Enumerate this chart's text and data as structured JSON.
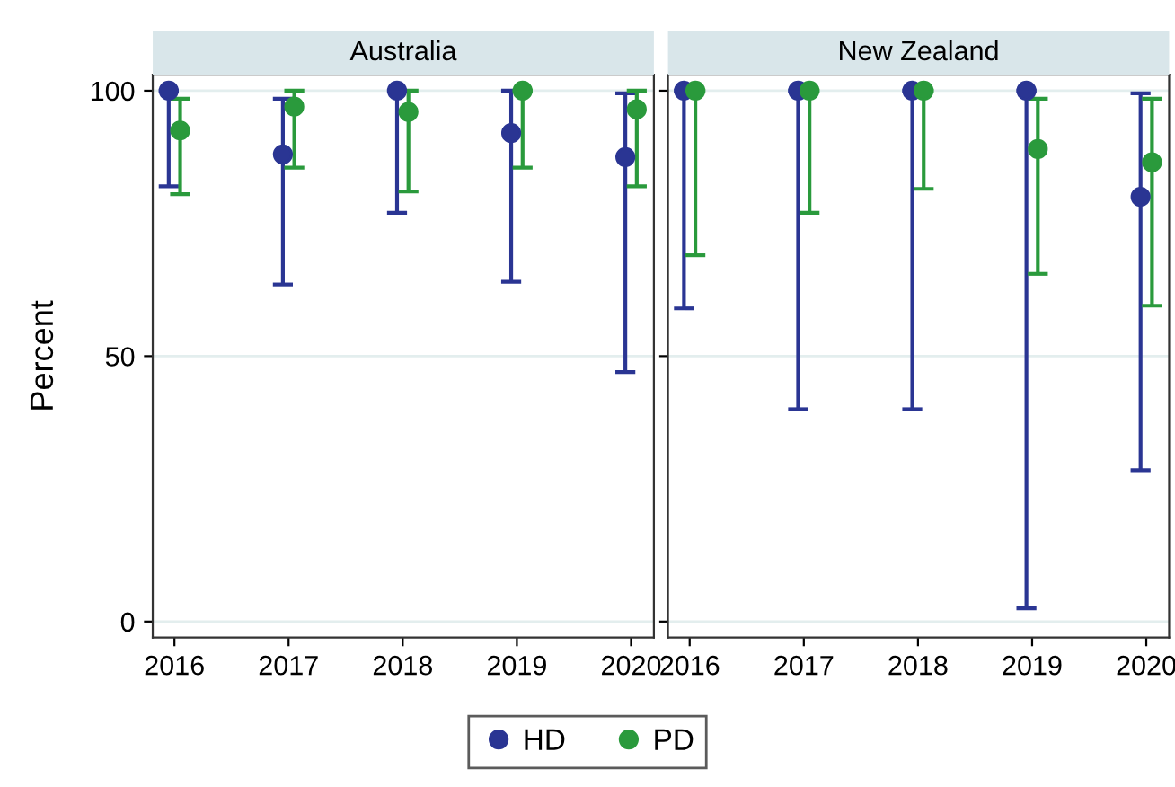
{
  "chart_data": [
    {
      "type": "scatter",
      "title": "Australia",
      "ylabel": "Percent",
      "xlim": [
        2015.81,
        2020.2
      ],
      "xticks": [
        2016,
        2017,
        2018,
        2019,
        2020
      ],
      "ylim": [
        -3,
        103
      ],
      "yticks": [
        0,
        50,
        100
      ],
      "grid": "y",
      "marker": "circle",
      "legend": "bottom",
      "series": [
        {
          "name": "HD",
          "color": "#2a3593",
          "x": [
            2015.95,
            2016.95,
            2017.95,
            2018.95,
            2019.95
          ],
          "values": [
            100,
            88,
            100,
            92,
            87.5
          ],
          "errors": [
            [
              82,
              100
            ],
            [
              63.5,
              98.5
            ],
            [
              77,
              100
            ],
            [
              64,
              100
            ],
            [
              47,
              99.5
            ]
          ]
        },
        {
          "name": "PD",
          "color": "#2a9a3c",
          "x": [
            2016.05,
            2017.05,
            2018.05,
            2019.05,
            2020.05
          ],
          "values": [
            92.5,
            97,
            96,
            100,
            96.5
          ],
          "errors": [
            [
              80.5,
              98.5
            ],
            [
              85.5,
              100
            ],
            [
              81,
              100
            ],
            [
              85.5,
              100
            ],
            [
              82,
              100
            ]
          ]
        }
      ]
    },
    {
      "type": "scatter",
      "title": "New Zealand",
      "xlim": [
        2015.81,
        2020.2
      ],
      "xticks": [
        2016,
        2017,
        2018,
        2019,
        2020
      ],
      "ylim": [
        -3,
        103
      ],
      "yticks": [
        0,
        50,
        100
      ],
      "grid": "y",
      "marker": "circle",
      "tick_labels": "x",
      "series": [
        {
          "name": "HD",
          "color": "#2a3593",
          "x": [
            2015.95,
            2016.95,
            2017.95,
            2018.95,
            2019.95
          ],
          "values": [
            100,
            100,
            100,
            100,
            80
          ],
          "errors": [
            [
              59,
              100
            ],
            [
              40,
              100
            ],
            [
              40,
              100
            ],
            [
              2.5,
              100
            ],
            [
              28.5,
              99.5
            ]
          ]
        },
        {
          "name": "PD",
          "color": "#2a9a3c",
          "x": [
            2016.05,
            2017.05,
            2018.05,
            2019.05,
            2020.05
          ],
          "values": [
            100,
            100,
            100,
            89,
            86.5
          ],
          "errors": [
            [
              69,
              100
            ],
            [
              77,
              100
            ],
            [
              81.5,
              100
            ],
            [
              65.5,
              98.5
            ],
            [
              59.5,
              98.5
            ]
          ]
        }
      ]
    }
  ]
}
